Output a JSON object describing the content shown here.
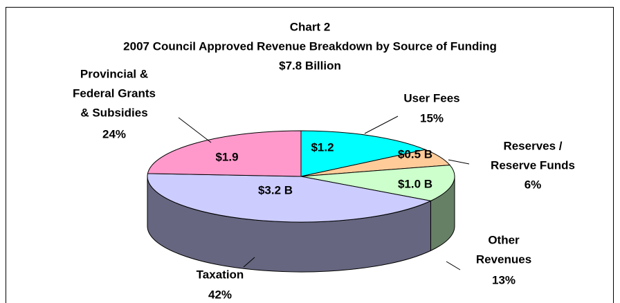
{
  "chart_data": {
    "type": "pie3d",
    "title": [
      "Chart 2",
      "2007 Council Approved Revenue Breakdown by Source of Funding",
      "$7.8 Billion"
    ],
    "categories": [
      [
        "User Fees"
      ],
      [
        "Reserves /",
        "Reserve Funds"
      ],
      [
        "Other",
        "Revenues"
      ],
      [
        "Taxation"
      ],
      [
        "Provincial &",
        "Federal Grants",
        "& Subsidies"
      ]
    ],
    "values": [
      15,
      6,
      13,
      42,
      24
    ],
    "value_labels": [
      "15%",
      "6%",
      "13%",
      "42%",
      "24%"
    ],
    "amount_labels": [
      "$1.2",
      "$0.5 B",
      "$1.0 B",
      "$3.2 B",
      "$1.9"
    ],
    "colors": [
      "#00ffff",
      "#ffcc99",
      "#ccffcc",
      "#ccccff",
      "#ff99cc"
    ]
  }
}
